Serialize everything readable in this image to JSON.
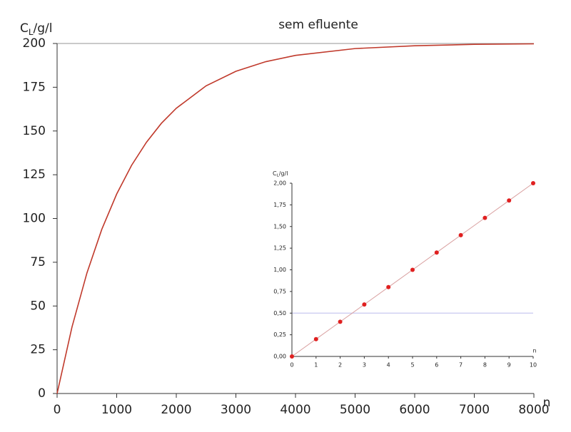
{
  "chart_data": [
    {
      "type": "line",
      "title": "sem efluente",
      "y_label_parts": [
        "C",
        "L",
        "/g/l"
      ],
      "x_label": "n",
      "x": [
        0,
        250,
        500,
        750,
        1000,
        1250,
        1500,
        1750,
        2000,
        2500,
        3000,
        3500,
        4000,
        5000,
        6000,
        7000,
        8000
      ],
      "values": [
        0,
        38.0,
        68.8,
        93.8,
        114.0,
        130.4,
        143.6,
        154.4,
        163.0,
        175.8,
        184.1,
        189.6,
        193.2,
        197.1,
        198.7,
        199.5,
        199.8
      ],
      "color": "#c0392b",
      "xlim": [
        0,
        8000
      ],
      "ylim": [
        0,
        200
      ],
      "xticks": [
        0,
        1000,
        2000,
        3000,
        4000,
        5000,
        6000,
        7000,
        8000
      ],
      "yticks": [
        0,
        25,
        50,
        75,
        100,
        125,
        150,
        175,
        200
      ],
      "hlines": [
        {
          "value": 200,
          "color": "#aaaaaa"
        }
      ]
    },
    {
      "type": "scatter",
      "y_label_parts": [
        "C",
        "L",
        "/g/l"
      ],
      "x_label": "n",
      "x": [
        0,
        1,
        2,
        3,
        4,
        5,
        6,
        7,
        8,
        9,
        10
      ],
      "values": [
        0,
        0.2,
        0.4,
        0.6,
        0.8,
        1.0,
        1.2,
        1.4,
        1.6,
        1.8,
        2.0
      ],
      "color": "#e02020",
      "line_color": "#d9a0a0",
      "xlim": [
        0,
        10
      ],
      "ylim": [
        0,
        2
      ],
      "xticks": [
        0,
        1,
        2,
        3,
        4,
        5,
        6,
        7,
        8,
        9,
        10
      ],
      "yticks": [
        {
          "value": 0,
          "label": "0,00"
        },
        {
          "value": 0.25,
          "label": "0,25"
        },
        {
          "value": 0.5,
          "label": "0,50"
        },
        {
          "value": 0.75,
          "label": "0,75"
        },
        {
          "value": 1,
          "label": "1,00"
        },
        {
          "value": 1.25,
          "label": "1,25"
        },
        {
          "value": 1.5,
          "label": "1,50"
        },
        {
          "value": 1.75,
          "label": "1,75"
        },
        {
          "value": 2,
          "label": "2,00"
        }
      ],
      "hlines": [
        {
          "value": 0.5,
          "color": "#c8c8f0"
        }
      ]
    }
  ]
}
